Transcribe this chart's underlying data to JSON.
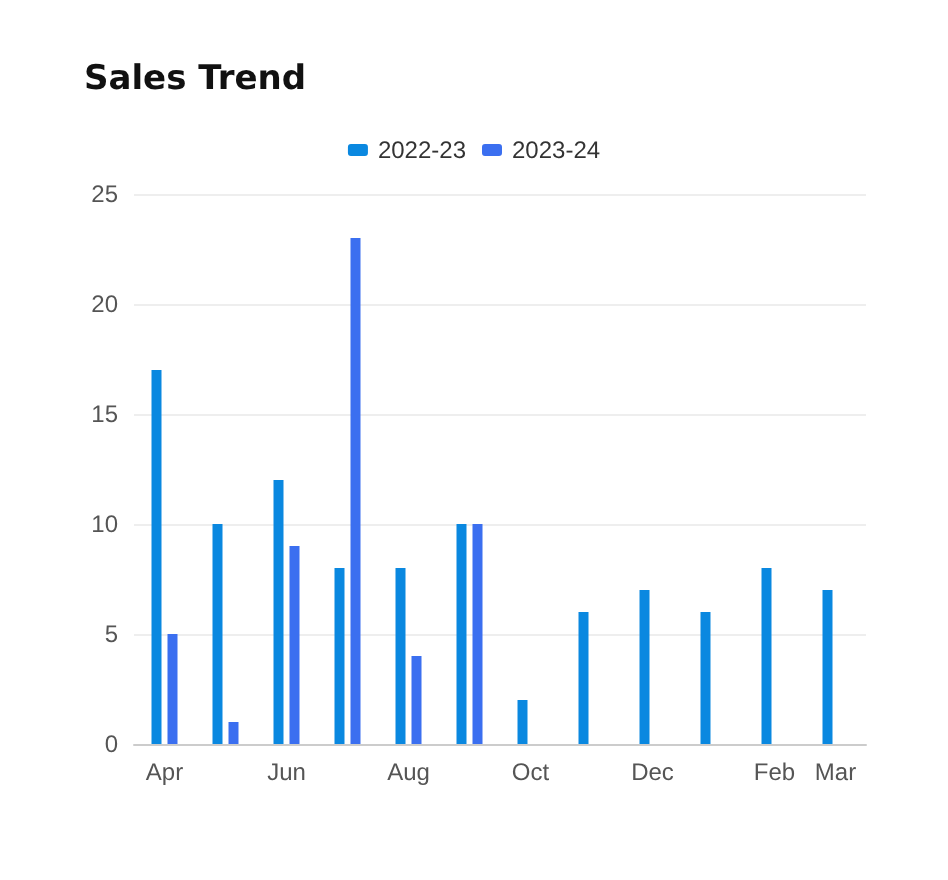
{
  "chart_data": {
    "type": "bar",
    "title": "Sales Trend",
    "categories": [
      "Apr",
      null,
      "Jun",
      null,
      "Aug",
      null,
      "Oct",
      null,
      "Dec",
      null,
      "Feb",
      "Mar"
    ],
    "series": [
      {
        "name": "2022-23",
        "color": "#0a88e0",
        "values": [
          17,
          10,
          12,
          8,
          8,
          10,
          2,
          6,
          7,
          6,
          8,
          7
        ]
      },
      {
        "name": "2023-24",
        "color": "#3b6ff0",
        "values": [
          5,
          1,
          9,
          23,
          4,
          10,
          null,
          null,
          null,
          null,
          null,
          null
        ]
      }
    ],
    "ylim": [
      0,
      25
    ],
    "yticks": [
      0,
      5,
      10,
      15,
      20,
      25
    ],
    "grid": "y",
    "legend": "top"
  }
}
